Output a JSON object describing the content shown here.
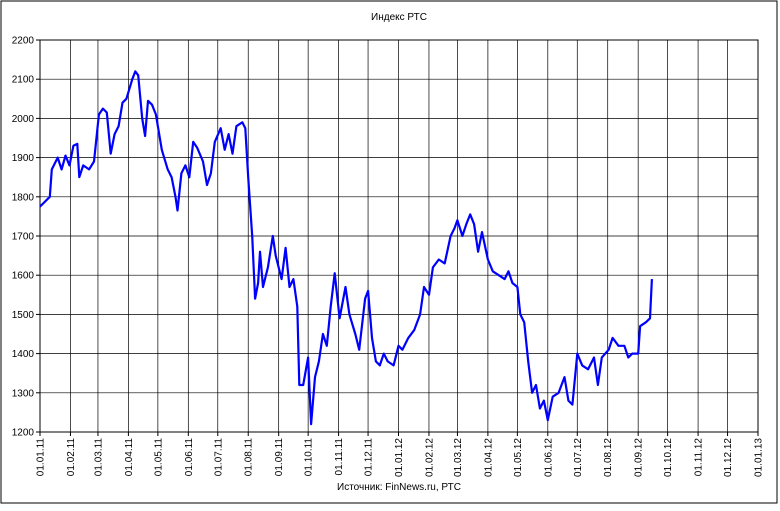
{
  "chart_data": {
    "type": "line",
    "title": "Индекс РТС",
    "source": "Источник: FinNews.ru, РТС",
    "x": [
      "01.01.11",
      "11.01.11",
      "13.01.11",
      "19.01.11",
      "23.01.11",
      "27.01.11",
      "31.01.11",
      "04.02.11",
      "08.02.11",
      "10.02.11",
      "14.02.11",
      "20.02.11",
      "25.02.11",
      "02.03.11",
      "06.03.11",
      "10.03.11",
      "14.03.11",
      "18.03.11",
      "22.03.11",
      "26.03.11",
      "30.03.11",
      "05.04.11",
      "08.04.11",
      "11.04.11",
      "15.04.11",
      "18.04.11",
      "21.04.11",
      "25.04.11",
      "29.04.11",
      "05.05.11",
      "11.05.11",
      "15.05.11",
      "19.05.11",
      "21.05.11",
      "25.05.11",
      "29.05.11",
      "02.06.11",
      "06.06.11",
      "10.06.11",
      "16.06.11",
      "20.06.11",
      "24.06.11",
      "28.06.11",
      "04.07.11",
      "08.07.11",
      "12.07.11",
      "16.07.11",
      "20.07.11",
      "26.07.11",
      "29.07.11",
      "01.08.11",
      "05.08.11",
      "08.08.11",
      "11.08.11",
      "13.08.11",
      "16.08.11",
      "21.08.11",
      "26.08.11",
      "29.08.11",
      "04.09.11",
      "08.09.11",
      "12.09.11",
      "16.09.11",
      "20.09.11",
      "22.09.11",
      "26.09.11",
      "01.10.11",
      "04.10.11",
      "08.10.11",
      "12.10.11",
      "16.10.11",
      "20.10.11",
      "24.10.11",
      "28.10.11",
      "02.11.11",
      "08.11.11",
      "12.11.11",
      "18.11.11",
      "22.11.11",
      "28.11.11",
      "01.12.11",
      "05.12.11",
      "09.12.11",
      "13.12.11",
      "17.12.11",
      "21.12.11",
      "27.12.11",
      "01.01.12",
      "05.01.12",
      "11.01.12",
      "17.01.12",
      "23.01.12",
      "27.01.12",
      "01.02.12",
      "05.02.12",
      "11.02.12",
      "17.02.12",
      "23.02.12",
      "27.02.12",
      "01.03.12",
      "06.03.12",
      "10.03.12",
      "14.03.12",
      "18.03.12",
      "22.03.12",
      "26.03.12",
      "01.04.12",
      "06.04.12",
      "12.04.12",
      "18.04.12",
      "22.04.12",
      "26.04.12",
      "01.05.12",
      "04.05.12",
      "08.05.12",
      "12.05.12",
      "16.05.12",
      "20.05.12",
      "24.05.12",
      "28.05.12",
      "01.06.12",
      "06.06.12",
      "12.06.12",
      "18.06.12",
      "22.06.12",
      "26.06.12",
      "01.07.12",
      "06.07.12",
      "12.07.12",
      "18.07.12",
      "22.07.12",
      "26.07.12",
      "02.08.12",
      "06.08.12",
      "12.08.12",
      "18.08.12",
      "22.08.12",
      "26.08.12",
      "01.09.12",
      "03.09.12",
      "09.09.12",
      "13.09.12",
      "15.09.12"
    ],
    "series": [
      {
        "name": "РТС",
        "color": "#0000ff",
        "values": [
          1775,
          1800,
          1870,
          1900,
          1870,
          1905,
          1880,
          1930,
          1935,
          1850,
          1880,
          1870,
          1890,
          2010,
          2025,
          2015,
          1910,
          1960,
          1980,
          2040,
          2050,
          2100,
          2120,
          2110,
          2000,
          1955,
          2045,
          2035,
          2010,
          1920,
          1870,
          1850,
          1800,
          1765,
          1860,
          1880,
          1850,
          1940,
          1925,
          1890,
          1830,
          1860,
          1940,
          1975,
          1920,
          1960,
          1910,
          1980,
          1990,
          1975,
          1850,
          1700,
          1540,
          1580,
          1660,
          1570,
          1620,
          1700,
          1650,
          1590,
          1670,
          1570,
          1590,
          1520,
          1320,
          1320,
          1390,
          1220,
          1340,
          1380,
          1450,
          1420,
          1520,
          1605,
          1490,
          1570,
          1500,
          1450,
          1410,
          1540,
          1560,
          1440,
          1380,
          1370,
          1400,
          1380,
          1370,
          1420,
          1410,
          1440,
          1460,
          1500,
          1570,
          1550,
          1620,
          1640,
          1630,
          1700,
          1720,
          1740,
          1700,
          1730,
          1755,
          1730,
          1660,
          1710,
          1640,
          1610,
          1600,
          1590,
          1610,
          1580,
          1570,
          1500,
          1480,
          1380,
          1300,
          1320,
          1260,
          1280,
          1230,
          1290,
          1300,
          1340,
          1280,
          1270,
          1400,
          1370,
          1360,
          1390,
          1320,
          1390,
          1410,
          1440,
          1420,
          1420,
          1390,
          1400,
          1400,
          1470,
          1480,
          1490,
          1590
        ]
      }
    ],
    "xlim": [
      "01.01.11",
      "01.01.13"
    ],
    "xticks": [
      "01.01.11",
      "01.02.11",
      "01.03.11",
      "01.04.11",
      "01.05.11",
      "01.06.11",
      "01.07.11",
      "01.08.11",
      "01.09.11",
      "01.10.11",
      "01.11.11",
      "01.12.11",
      "01.01.12",
      "01.02.12",
      "01.03.12",
      "01.04.12",
      "01.05.12",
      "01.06.12",
      "01.07.12",
      "01.08.12",
      "01.09.12",
      "01.10.12",
      "01.11.12",
      "01.12.12",
      "01.01.13"
    ],
    "ylim": [
      1200,
      2200
    ],
    "yticks": [
      1200,
      1300,
      1400,
      1500,
      1600,
      1700,
      1800,
      1900,
      2000,
      2100,
      2200
    ],
    "grid": true
  }
}
